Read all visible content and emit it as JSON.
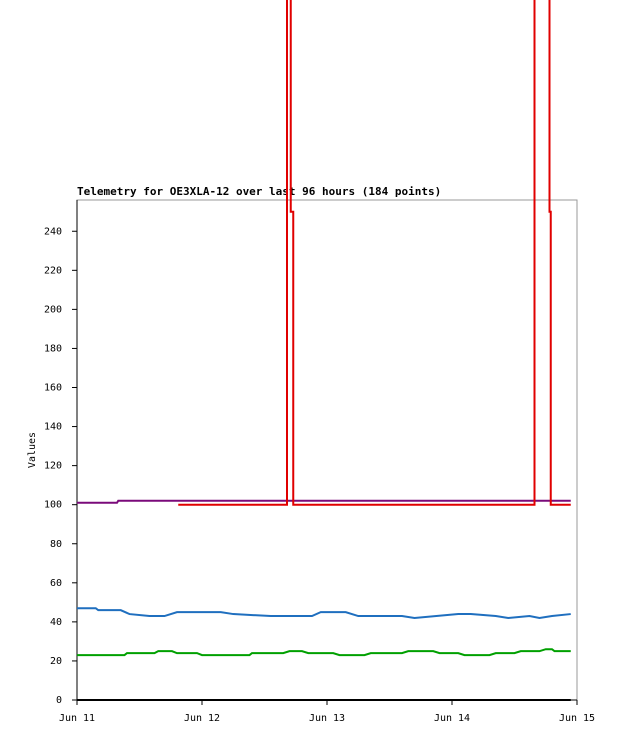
{
  "chart_data": {
    "type": "line",
    "title": "Telemetry for OE3XLA-12 over last 96 hours (184 points)",
    "y_label": "Values",
    "xlim": [
      11,
      15
    ],
    "xticks": [
      {
        "value": 11,
        "label": "Jun 11"
      },
      {
        "value": 12,
        "label": "Jun 12"
      },
      {
        "value": 13,
        "label": "Jun 13"
      },
      {
        "value": 14,
        "label": "Jun 14"
      },
      {
        "value": 15,
        "label": "Jun 15"
      }
    ],
    "ylim": [
      0,
      256
    ],
    "yticks": [
      0,
      20,
      40,
      60,
      80,
      100,
      120,
      140,
      160,
      180,
      200,
      220,
      240
    ],
    "series": [
      {
        "color": "#7a0a7a",
        "x": [
          11.0,
          11.32,
          11.33,
          14.95
        ],
        "values": [
          101,
          101,
          102,
          102
        ]
      },
      {
        "color": "#e00000",
        "x": [
          11.81,
          12.68,
          12.68,
          12.71,
          12.71,
          12.73,
          12.73,
          14.66,
          14.66,
          14.78,
          14.78,
          14.79,
          14.79,
          14.95
        ],
        "values": [
          100,
          100,
          360,
          360,
          250,
          250,
          100,
          100,
          360,
          360,
          250,
          250,
          100,
          100
        ]
      },
      {
        "color": "#1f6fbf",
        "x": [
          11.0,
          11.15,
          11.17,
          11.35,
          11.42,
          11.58,
          11.7,
          11.8,
          12.15,
          12.25,
          12.55,
          12.6,
          12.88,
          12.95,
          13.15,
          13.25,
          13.6,
          13.7,
          14.05,
          14.15,
          14.35,
          14.45,
          14.62,
          14.7,
          14.8,
          14.95
        ],
        "values": [
          47,
          47,
          46,
          46,
          44,
          43,
          43,
          45,
          45,
          44,
          43,
          43,
          43,
          45,
          45,
          43,
          43,
          42,
          44,
          44,
          43,
          42,
          43,
          42,
          43,
          44
        ]
      },
      {
        "color": "#00a000",
        "x": [
          11.0,
          11.38,
          11.4,
          11.62,
          11.65,
          11.76,
          11.8,
          11.96,
          12.0,
          12.38,
          12.4,
          12.65,
          12.7,
          12.8,
          12.85,
          13.05,
          13.1,
          13.3,
          13.35,
          13.6,
          13.65,
          13.85,
          13.9,
          14.05,
          14.1,
          14.3,
          14.35,
          14.5,
          14.55,
          14.7,
          14.75,
          14.8,
          14.82,
          14.95
        ],
        "values": [
          23,
          23,
          24,
          24,
          25,
          25,
          24,
          24,
          23,
          23,
          24,
          24,
          25,
          25,
          24,
          24,
          23,
          23,
          24,
          24,
          25,
          25,
          24,
          24,
          23,
          23,
          24,
          24,
          25,
          25,
          26,
          26,
          25,
          25
        ]
      },
      {
        "color": "#000000",
        "x": [
          11.0,
          14.95
        ],
        "values": [
          0,
          0
        ]
      }
    ]
  }
}
